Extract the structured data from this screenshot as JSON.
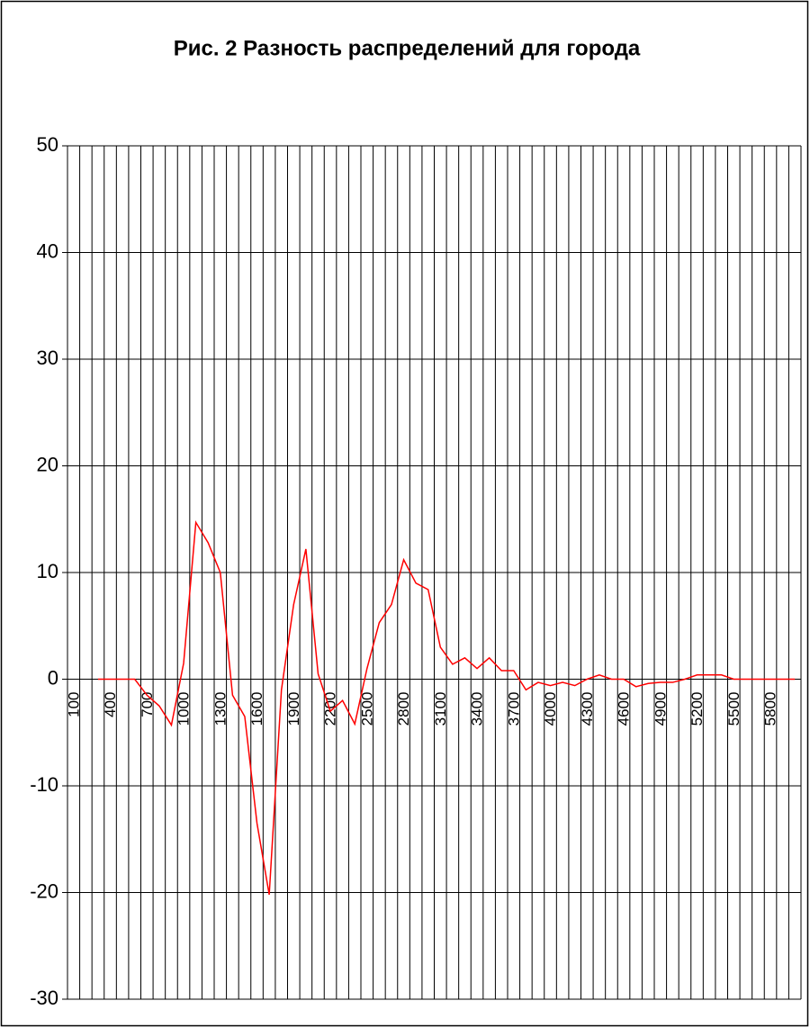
{
  "chart_data": {
    "type": "line",
    "title": "Рис. 2 Разность распределений для города",
    "categories": [
      "100",
      null,
      null,
      "400",
      null,
      null,
      "700",
      null,
      null,
      "1000",
      null,
      null,
      "1300",
      null,
      null,
      "1600",
      null,
      null,
      "1900",
      null,
      null,
      "2200",
      null,
      null,
      "2500",
      null,
      null,
      "2800",
      null,
      null,
      "3100",
      null,
      null,
      "3400",
      null,
      null,
      "3700",
      null,
      null,
      "4000",
      null,
      null,
      "4300",
      null,
      null,
      "4600",
      null,
      null,
      "4900",
      null,
      null,
      "5200",
      null,
      null,
      "5500",
      null,
      null,
      "5800",
      null,
      null
    ],
    "values": [
      null,
      null,
      0,
      0,
      0,
      0,
      -1.5,
      -2.5,
      -4.3,
      1.5,
      14.7,
      12.8,
      10,
      -1.5,
      -3.5,
      -13.5,
      -20.2,
      -1,
      7,
      12.2,
      0.5,
      -3,
      -2,
      -4.2,
      1,
      5.3,
      7,
      11.2,
      9,
      8.4,
      3,
      1.4,
      2,
      1,
      2,
      0.8,
      0.8,
      -1,
      -0.3,
      -0.6,
      -0.3,
      -0.6,
      0,
      0.4,
      0,
      0,
      -0.7,
      -0.4,
      -0.3,
      -0.3,
      0,
      0.4,
      0.4,
      0.4,
      0,
      0,
      0,
      0,
      0,
      0
    ],
    "color": "#ff0000",
    "ylim": [
      -30,
      50
    ],
    "yticks": [
      -30,
      -20,
      -10,
      0,
      10,
      20,
      30,
      40,
      50
    ],
    "grid": true
  }
}
